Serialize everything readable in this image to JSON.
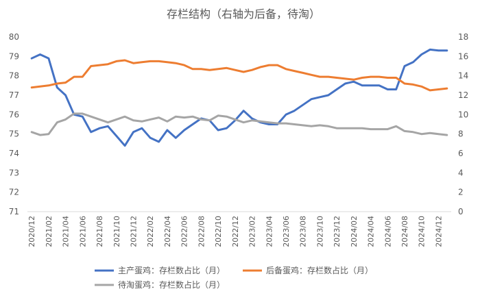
{
  "chart_data": {
    "type": "line",
    "title": "存栏结构（右轴为后备，待淘）",
    "y_left": {
      "min": 71,
      "max": 80,
      "step": 1
    },
    "y_right": {
      "min": 0,
      "max": 18,
      "step": 2
    },
    "grid": false,
    "legend_position": "bottom",
    "x": [
      "2020/12",
      "2021/01",
      "2021/02",
      "2021/03",
      "2021/04",
      "2021/05",
      "2021/06",
      "2021/07",
      "2021/08",
      "2021/09",
      "2021/10",
      "2021/11",
      "2021/12",
      "2022/01",
      "2022/02",
      "2022/03",
      "2022/04",
      "2022/05",
      "2022/06",
      "2022/07",
      "2022/08",
      "2022/09",
      "2022/10",
      "2022/11",
      "2022/12",
      "2023/01",
      "2023/02",
      "2023/03",
      "2023/04",
      "2023/05",
      "2023/06",
      "2023/07",
      "2023/08",
      "2023/09",
      "2023/10",
      "2023/11",
      "2023/12",
      "2024/01",
      "2024/02",
      "2024/03",
      "2024/04",
      "2024/05",
      "2024/06",
      "2024/07",
      "2024/08",
      "2024/09",
      "2024/10",
      "2024/11",
      "2024/12",
      "2025/01"
    ],
    "x_tick_labels": [
      "2020/12",
      "2021/02",
      "2021/04",
      "2021/06",
      "2021/08",
      "2021/10",
      "2021/12",
      "2022/02",
      "2022/04",
      "2022/06",
      "2022/08",
      "2022/10",
      "2022/12",
      "2023/02",
      "2023/04",
      "2023/06",
      "2023/08",
      "2023/10",
      "2023/12",
      "2024/02",
      "2024/04",
      "2024/06",
      "2024/08",
      "2024/10",
      "2024/12"
    ],
    "series": [
      {
        "name": "主产蛋鸡：存栏数占比（月）",
        "axis": "left",
        "color": "#4472C4",
        "values": [
          78.9,
          79.1,
          78.9,
          77.4,
          77.0,
          76.0,
          75.9,
          75.1,
          75.3,
          75.4,
          74.9,
          74.4,
          75.1,
          75.3,
          74.8,
          74.6,
          75.2,
          74.8,
          75.2,
          75.5,
          75.8,
          75.7,
          75.2,
          75.3,
          75.7,
          76.2,
          75.8,
          75.6,
          75.5,
          75.5,
          76.0,
          76.2,
          76.5,
          76.8,
          76.9,
          77.0,
          77.3,
          77.6,
          77.7,
          77.5,
          77.5,
          77.5,
          77.3,
          77.3,
          78.5,
          78.7,
          79.1,
          79.35,
          79.3,
          79.3
        ]
      },
      {
        "name": "后备蛋鸡：存栏数占比（月）",
        "axis": "right",
        "color": "#ED7D31",
        "values": [
          12.8,
          12.9,
          13.0,
          13.2,
          13.3,
          13.9,
          13.9,
          15.0,
          15.1,
          15.2,
          15.5,
          15.6,
          15.3,
          15.4,
          15.5,
          15.5,
          15.4,
          15.3,
          15.1,
          14.7,
          14.7,
          14.6,
          14.7,
          14.8,
          14.6,
          14.4,
          14.6,
          14.9,
          15.1,
          15.1,
          14.7,
          14.5,
          14.3,
          14.1,
          13.9,
          13.9,
          13.8,
          13.7,
          13.6,
          13.8,
          13.9,
          13.9,
          13.8,
          13.8,
          13.2,
          13.1,
          12.9,
          12.5,
          12.6,
          12.7
        ]
      },
      {
        "name": "待淘蛋鸡：存栏数占比（月）",
        "axis": "right",
        "color": "#A5A5A5",
        "values": [
          8.2,
          7.9,
          8.0,
          9.2,
          9.5,
          10.1,
          10.1,
          9.8,
          9.5,
          9.2,
          9.5,
          9.8,
          9.4,
          9.3,
          9.5,
          9.7,
          9.3,
          9.8,
          9.7,
          9.8,
          9.5,
          9.4,
          9.9,
          9.8,
          9.5,
          9.2,
          9.4,
          9.3,
          9.2,
          9.1,
          9.1,
          9.0,
          8.9,
          8.8,
          8.9,
          8.8,
          8.6,
          8.6,
          8.6,
          8.6,
          8.5,
          8.5,
          8.5,
          8.8,
          8.3,
          8.2,
          8.0,
          8.1,
          8.0,
          7.9
        ]
      }
    ]
  }
}
